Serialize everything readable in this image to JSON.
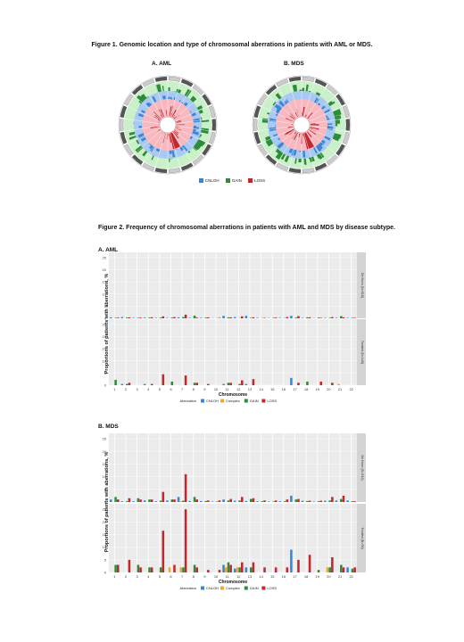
{
  "fig1": {
    "title": "Figure 1. Genomic location and type of chromosomal aberrations in patients with AML or MDS.",
    "panel_a": "A.     AML",
    "panel_b": "B. MDS",
    "legend": [
      {
        "label": "CNLOH",
        "color": "#3a86d6"
      },
      {
        "label": "GAIN",
        "color": "#2e8b3a"
      },
      {
        "label": "LOSS",
        "color": "#c0282e"
      }
    ]
  },
  "fig2": {
    "title": "Figure 2. Frequency of chromosomal aberrations in patients with AML and MDS by disease subtype.",
    "section_a": "A. AML",
    "section_b": "B. MDS"
  },
  "chart_data": [
    {
      "type": "bar",
      "title": "A. AML",
      "xlabel": "Chromosome",
      "ylabel": "Proportions of patients with aberrations, %",
      "ylim": [
        0,
        25
      ],
      "yticks": [
        0,
        5,
        10,
        15,
        20,
        25
      ],
      "categories": [
        "1",
        "2",
        "3",
        "4",
        "5",
        "6",
        "7",
        "8",
        "9",
        "10",
        "11",
        "12",
        "13",
        "14",
        "15",
        "16",
        "17",
        "18",
        "19",
        "20",
        "21",
        "22"
      ],
      "legend_title": "Aberration",
      "legend": [
        {
          "label": "CNLOH",
          "color": "#3a86d6"
        },
        {
          "label": "Complex",
          "color": "#f0a830"
        },
        {
          "label": "GAIN",
          "color": "#2e8b3a"
        },
        {
          "label": "LOSS",
          "color": "#c0282e"
        }
      ],
      "facets": [
        {
          "label": "De Novo (N=618)",
          "series": [
            {
              "name": "CNLOH",
              "values": [
                0.4,
                0.5,
                0.2,
                0.3,
                0.2,
                0.2,
                0.4,
                0.2,
                0.2,
                0.1,
                1.0,
                0.5,
                1.0,
                0.2,
                0.1,
                0.2,
                1.0,
                0.2,
                0.1,
                0.2,
                0.2,
                0.2
              ]
            },
            {
              "name": "Complex",
              "values": [
                0,
                0,
                0,
                0,
                0,
                0,
                0,
                0,
                0,
                0,
                0,
                0,
                0,
                0,
                0,
                0,
                0,
                0,
                0,
                0,
                0,
                0
              ]
            },
            {
              "name": "GAIN",
              "values": [
                0.2,
                0.3,
                0.2,
                0.3,
                0.3,
                0.3,
                0.5,
                1.1,
                0.3,
                0.1,
                0.4,
                0.1,
                0.2,
                0.1,
                0.2,
                0.1,
                0.3,
                0.4,
                0.3,
                0.2,
                0.9,
                0.2
              ]
            },
            {
              "name": "LOSS",
              "values": [
                0.3,
                0.4,
                0.3,
                0.4,
                0.8,
                0.5,
                1.5,
                0.3,
                0.4,
                0.2,
                0.4,
                0.8,
                0.4,
                0.2,
                0.3,
                0.5,
                0.9,
                0.4,
                0.2,
                0.5,
                0.4,
                0.2
              ]
            }
          ]
        },
        {
          "label": "Treated (N=146)",
          "series": [
            {
              "name": "CNLOH",
              "values": [
                0,
                0.5,
                0,
                0.5,
                0,
                0,
                0,
                0,
                0,
                0,
                0.5,
                0,
                0.5,
                0,
                0,
                0,
                3,
                0,
                0,
                0,
                0,
                0
              ]
            },
            {
              "name": "Complex",
              "values": [
                0,
                0,
                0,
                0,
                0,
                0,
                0,
                0,
                0,
                0,
                0,
                0,
                0,
                0,
                0,
                0,
                0,
                0,
                0,
                0,
                0.5,
                0
              ]
            },
            {
              "name": "GAIN",
              "values": [
                2.2,
                0.5,
                0,
                0,
                0,
                1.5,
                0,
                1,
                0,
                0,
                1,
                0.5,
                0,
                0,
                0,
                0,
                0,
                1.5,
                0,
                0,
                0,
                0
              ]
            },
            {
              "name": "LOSS",
              "values": [
                0,
                1,
                0,
                0.5,
                4.5,
                0,
                4,
                1,
                0.5,
                0,
                1,
                2,
                2.5,
                0,
                0,
                0,
                1,
                0,
                1.5,
                1,
                0,
                0
              ]
            }
          ]
        }
      ]
    },
    {
      "type": "bar",
      "title": "B. MDS",
      "xlabel": "Chromosome",
      "ylabel": "Proportions of patients with aberrations, %",
      "ylim": [
        0,
        25
      ],
      "yticks": [
        0,
        5,
        10,
        15,
        20,
        25
      ],
      "categories": [
        "1",
        "2",
        "3",
        "4",
        "5",
        "6",
        "7",
        "8",
        "9",
        "10",
        "11",
        "12",
        "13",
        "14",
        "15",
        "16",
        "17",
        "18",
        "19",
        "20",
        "21",
        "22"
      ],
      "legend_title": "Aberration",
      "legend": [
        {
          "label": "CNLOH",
          "color": "#3a86d6"
        },
        {
          "label": "Complex",
          "color": "#f0a830"
        },
        {
          "label": "GAIN",
          "color": "#2e8b3a"
        },
        {
          "label": "LOSS",
          "color": "#c0282e"
        }
      ],
      "facets": [
        {
          "label": "De Novo (N=512)",
          "series": [
            {
              "name": "CNLOH",
              "values": [
                1,
                0.3,
                0.3,
                0.6,
                0.3,
                0.6,
                2,
                0.4,
                0.4,
                0.2,
                1,
                0.5,
                0.4,
                0.3,
                0.2,
                0.3,
                2.5,
                0.5,
                0.2,
                0.5,
                0.6,
                0.6
              ]
            },
            {
              "name": "Complex",
              "values": [
                0,
                0,
                0,
                0,
                0,
                0,
                0.3,
                0,
                0,
                0,
                0,
                0,
                0,
                0,
                0,
                0,
                0,
                0,
                0,
                0,
                0,
                0
              ]
            },
            {
              "name": "GAIN",
              "values": [
                2,
                0.3,
                1.5,
                1,
                0.5,
                1,
                0.5,
                2,
                0.4,
                0.2,
                0.6,
                0.6,
                1.2,
                0.3,
                0.2,
                0.3,
                1,
                0.4,
                0.3,
                0.6,
                1.2,
                0.3
              ]
            },
            {
              "name": "LOSS",
              "values": [
                1,
                1.5,
                1,
                1,
                4,
                1,
                11,
                1,
                0.6,
                0.6,
                1.2,
                2,
                1.5,
                0.6,
                0.6,
                1,
                1.2,
                0.5,
                0.5,
                2,
                2.5,
                0.3
              ]
            }
          ]
        },
        {
          "label": "Treated (N=90)",
          "series": [
            {
              "name": "CNLOH",
              "values": [
                0,
                0,
                0,
                0,
                0,
                0,
                0,
                0,
                0,
                0,
                3,
                1.5,
                2,
                0,
                0,
                0,
                9,
                0,
                0,
                0,
                0,
                2
              ]
            },
            {
              "name": "Complex",
              "values": [
                0,
                0,
                0,
                0,
                0,
                2,
                2,
                0,
                0,
                0,
                2,
                2,
                0,
                0,
                0,
                0,
                0,
                0,
                0,
                2,
                0,
                0
              ]
            },
            {
              "name": "GAIN",
              "values": [
                3,
                0,
                3,
                2,
                2,
                0,
                2,
                3,
                0,
                0,
                4,
                2,
                2,
                0,
                0,
                0,
                0,
                0,
                1,
                2,
                3,
                1.5
              ]
            },
            {
              "name": "LOSS",
              "values": [
                3,
                5,
                2,
                2,
                16.5,
                3,
                25,
                2,
                1,
                1,
                3,
                4,
                4,
                2,
                2,
                2,
                5,
                7,
                0,
                6,
                2,
                2
              ]
            }
          ]
        }
      ]
    }
  ]
}
